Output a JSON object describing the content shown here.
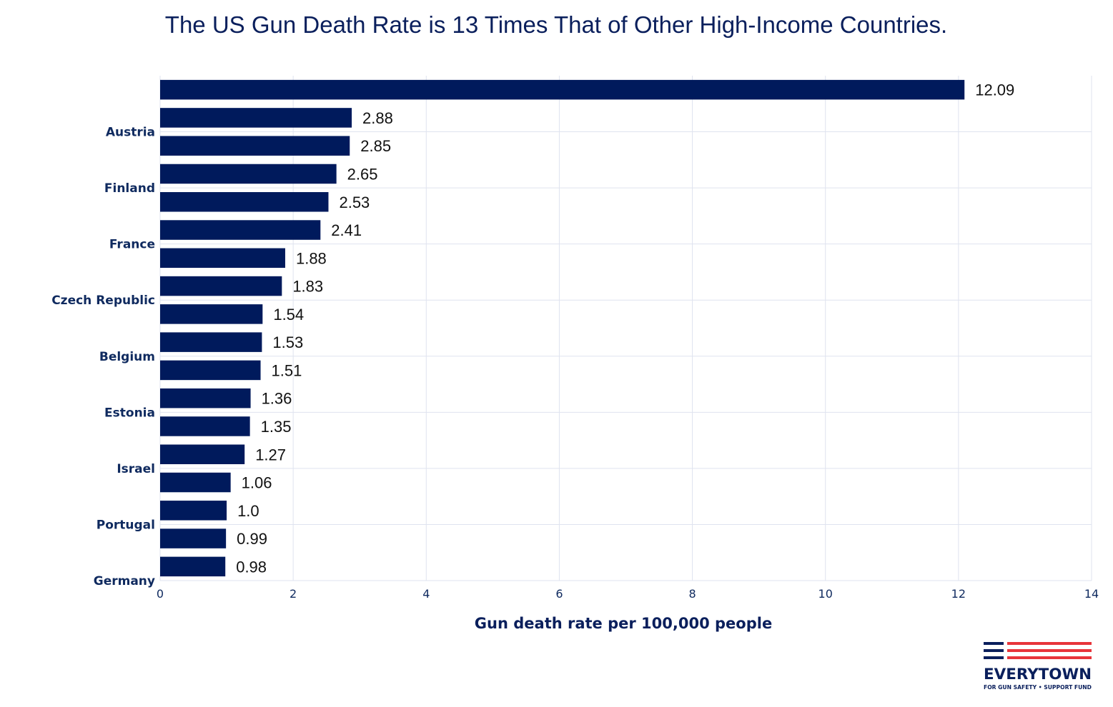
{
  "chart_data": {
    "type": "bar",
    "orientation": "horizontal",
    "title": "The US Gun Death Rate is 13 Times That of Other High-Income Countries.",
    "xlabel": "Gun death rate per 100,000 people",
    "ylabel": "",
    "xlim": [
      0,
      14
    ],
    "xticks": [
      0,
      2,
      4,
      6,
      8,
      10,
      12,
      14
    ],
    "grid": true,
    "bar_color": "#001a5c",
    "grid_color": "#dfe3ef",
    "values": [
      12.09,
      2.88,
      2.85,
      2.65,
      2.53,
      2.41,
      1.88,
      1.83,
      1.54,
      1.53,
      1.51,
      1.36,
      1.35,
      1.27,
      1.06,
      1.0,
      0.99,
      0.98
    ],
    "value_labels": [
      "12.09",
      "2.88",
      "2.85",
      "2.65",
      "2.53",
      "2.41",
      "1.88",
      "1.83",
      "1.54",
      "1.53",
      "1.51",
      "1.36",
      "1.35",
      "1.27",
      "1.06",
      "1.0",
      "0.99",
      "0.98"
    ],
    "category_tick_labels": [
      "Austria",
      "Finland",
      "France",
      "Czech Republic",
      "Belgium",
      "Estonia",
      "Israel",
      "Portugal",
      "Germany"
    ]
  },
  "logo": {
    "name": "EVERYTOWN",
    "tagline": "FOR GUN SAFETY • SUPPORT FUND",
    "navy": "#0a1f5c",
    "red": "#e8343a"
  }
}
